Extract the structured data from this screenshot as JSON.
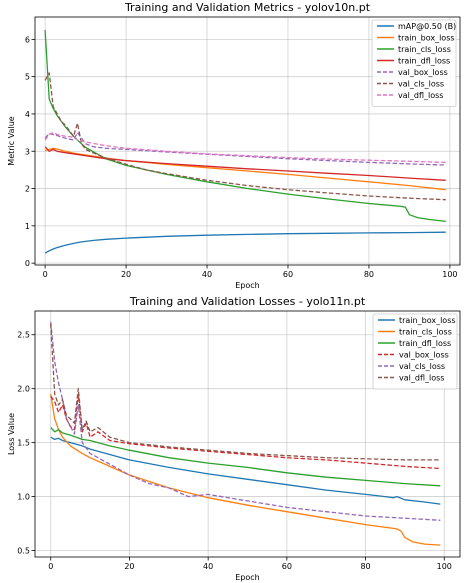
{
  "chart_data": [
    {
      "type": "line",
      "title": "Training and Validation Metrics - yolov10n.pt",
      "xlabel": "Epoch",
      "ylabel": "Metric Value",
      "xlim": [
        -2.5,
        102.5
      ],
      "ylim": [
        -0.05,
        6.6
      ],
      "xticks": [
        0,
        20,
        40,
        60,
        80,
        100
      ],
      "yticks": [
        0,
        1,
        2,
        3,
        4,
        5,
        6
      ],
      "grid": true,
      "legend_position": "top-right",
      "series": [
        {
          "name": "mAP@0.50 (B)",
          "color": "#1f77b4",
          "dashed": false,
          "x": [
            0,
            1,
            2,
            3,
            5,
            7,
            9,
            12,
            15,
            20,
            30,
            40,
            50,
            60,
            70,
            80,
            90,
            99
          ],
          "y": [
            0.27,
            0.33,
            0.38,
            0.42,
            0.48,
            0.53,
            0.57,
            0.61,
            0.64,
            0.67,
            0.72,
            0.75,
            0.77,
            0.79,
            0.8,
            0.81,
            0.82,
            0.83
          ]
        },
        {
          "name": "train_box_loss",
          "color": "#ff7f0e",
          "dashed": false,
          "x": [
            0,
            1,
            2,
            3,
            5,
            7,
            10,
            15,
            20,
            30,
            40,
            50,
            60,
            70,
            80,
            90,
            99
          ],
          "y": [
            3.02,
            3.05,
            3.08,
            3.06,
            3.0,
            2.95,
            2.9,
            2.82,
            2.75,
            2.65,
            2.56,
            2.47,
            2.38,
            2.28,
            2.18,
            2.08,
            1.97
          ]
        },
        {
          "name": "train_cls_loss",
          "color": "#2ca02c",
          "dashed": false,
          "x": [
            0,
            1,
            2,
            3,
            4,
            5,
            7,
            10,
            15,
            20,
            30,
            40,
            50,
            60,
            70,
            80,
            88,
            89,
            90,
            92,
            95,
            99
          ],
          "y": [
            6.25,
            4.4,
            4.15,
            3.95,
            3.8,
            3.65,
            3.4,
            3.1,
            2.8,
            2.62,
            2.38,
            2.18,
            2.0,
            1.85,
            1.72,
            1.6,
            1.52,
            1.5,
            1.3,
            1.22,
            1.17,
            1.12
          ]
        },
        {
          "name": "train_dfl_loss",
          "color": "#d62728",
          "dashed": false,
          "x": [
            0,
            1,
            2,
            3,
            5,
            10,
            15,
            20,
            30,
            40,
            50,
            60,
            70,
            80,
            90,
            99
          ],
          "y": [
            3.12,
            3.0,
            3.05,
            3.0,
            2.96,
            2.88,
            2.8,
            2.75,
            2.67,
            2.6,
            2.53,
            2.47,
            2.41,
            2.35,
            2.28,
            2.22
          ]
        },
        {
          "name": "val_box_loss",
          "color": "#9467bd",
          "dashed": true,
          "x": [
            0,
            1,
            2,
            3,
            5,
            7,
            8,
            10,
            12,
            15,
            20,
            30,
            40,
            50,
            60,
            70,
            80,
            90,
            99
          ],
          "y": [
            3.35,
            3.48,
            3.45,
            3.42,
            3.35,
            3.3,
            3.5,
            3.2,
            3.12,
            3.08,
            3.05,
            2.98,
            2.92,
            2.86,
            2.8,
            2.75,
            2.7,
            2.66,
            2.63
          ]
        },
        {
          "name": "val_cls_loss",
          "color": "#8c564b",
          "dashed": true,
          "x": [
            0,
            1,
            2,
            3,
            4,
            5,
            6,
            7,
            8,
            9,
            10,
            12,
            15,
            20,
            25,
            30,
            40,
            50,
            60,
            70,
            80,
            90,
            99
          ],
          "y": [
            4.9,
            5.1,
            4.2,
            4.0,
            3.8,
            3.7,
            3.55,
            3.4,
            3.75,
            3.2,
            3.05,
            2.95,
            2.82,
            2.65,
            2.5,
            2.4,
            2.22,
            2.08,
            1.97,
            1.88,
            1.8,
            1.74,
            1.7
          ]
        },
        {
          "name": "val_dfl_loss",
          "color": "#e377c2",
          "dashed": true,
          "x": [
            0,
            1,
            2,
            3,
            5,
            7,
            8,
            10,
            15,
            20,
            30,
            40,
            50,
            60,
            70,
            80,
            90,
            99
          ],
          "y": [
            3.3,
            3.45,
            3.5,
            3.45,
            3.4,
            3.38,
            3.3,
            3.25,
            3.15,
            3.08,
            3.0,
            2.93,
            2.88,
            2.83,
            2.79,
            2.76,
            2.73,
            2.7
          ]
        }
      ]
    },
    {
      "type": "line",
      "title": "Training and Validation Losses - yolo11n.pt",
      "xlabel": "Epoch",
      "ylabel": "Loss Value",
      "xlim": [
        -4,
        104
      ],
      "ylim": [
        0.44,
        2.72
      ],
      "xticks": [
        0,
        20,
        40,
        60,
        80,
        100
      ],
      "yticks": [
        0.5,
        1.0,
        1.5,
        2.0,
        2.5
      ],
      "ytick_labels": [
        "0.5",
        "1.0",
        "1.5",
        "2.0",
        "2.5"
      ],
      "grid": true,
      "legend_position": "top-right",
      "series": [
        {
          "name": "train_box_loss",
          "color": "#1f77b4",
          "dashed": false,
          "x": [
            0,
            1,
            2,
            3,
            5,
            8,
            10,
            15,
            20,
            30,
            40,
            50,
            60,
            70,
            80,
            85,
            87,
            88,
            90,
            95,
            99
          ],
          "y": [
            1.55,
            1.53,
            1.54,
            1.52,
            1.5,
            1.47,
            1.44,
            1.39,
            1.34,
            1.27,
            1.21,
            1.16,
            1.11,
            1.06,
            1.02,
            1.0,
            0.99,
            1.0,
            0.97,
            0.95,
            0.93
          ]
        },
        {
          "name": "train_cls_loss",
          "color": "#ff7f0e",
          "dashed": false,
          "x": [
            0,
            1,
            2,
            3,
            5,
            8,
            10,
            15,
            20,
            30,
            40,
            50,
            60,
            70,
            80,
            88,
            89,
            90,
            92,
            95,
            99
          ],
          "y": [
            1.95,
            1.72,
            1.62,
            1.55,
            1.47,
            1.4,
            1.36,
            1.28,
            1.2,
            1.08,
            0.99,
            0.92,
            0.86,
            0.8,
            0.74,
            0.7,
            0.68,
            0.62,
            0.58,
            0.56,
            0.55
          ]
        },
        {
          "name": "train_dfl_loss",
          "color": "#2ca02c",
          "dashed": false,
          "x": [
            0,
            1,
            2,
            3,
            5,
            8,
            10,
            15,
            20,
            30,
            40,
            50,
            60,
            70,
            80,
            90,
            99
          ],
          "y": [
            1.64,
            1.6,
            1.62,
            1.59,
            1.57,
            1.53,
            1.52,
            1.47,
            1.43,
            1.36,
            1.31,
            1.27,
            1.22,
            1.18,
            1.15,
            1.12,
            1.1
          ]
        },
        {
          "name": "val_box_loss",
          "color": "#d62728",
          "dashed": true,
          "x": [
            0,
            1,
            2,
            3,
            4,
            5,
            6,
            7,
            8,
            9,
            10,
            12,
            15,
            20,
            30,
            40,
            50,
            60,
            70,
            80,
            90,
            99
          ],
          "y": [
            1.93,
            1.88,
            1.78,
            1.85,
            1.72,
            1.65,
            1.62,
            1.95,
            1.6,
            1.68,
            1.55,
            1.6,
            1.52,
            1.49,
            1.45,
            1.42,
            1.39,
            1.36,
            1.34,
            1.31,
            1.28,
            1.26
          ]
        },
        {
          "name": "val_cls_loss",
          "color": "#9467bd",
          "dashed": true,
          "x": [
            0,
            1,
            2,
            3,
            4,
            5,
            6,
            7,
            8,
            9,
            10,
            12,
            15,
            20,
            25,
            30,
            35,
            40,
            50,
            60,
            70,
            80,
            90,
            99
          ],
          "y": [
            2.62,
            2.25,
            2.05,
            1.9,
            1.72,
            1.65,
            1.58,
            1.85,
            1.5,
            1.45,
            1.4,
            1.36,
            1.3,
            1.2,
            1.12,
            1.08,
            1.0,
            1.02,
            0.96,
            0.9,
            0.86,
            0.82,
            0.8,
            0.78
          ]
        },
        {
          "name": "val_dfl_loss",
          "color": "#8c564b",
          "dashed": true,
          "x": [
            0,
            1,
            2,
            3,
            4,
            5,
            6,
            7,
            8,
            9,
            10,
            12,
            15,
            20,
            30,
            40,
            50,
            60,
            70,
            80,
            90,
            99
          ],
          "y": [
            2.6,
            1.95,
            1.85,
            1.9,
            1.75,
            1.72,
            1.68,
            2.0,
            1.62,
            1.7,
            1.6,
            1.64,
            1.55,
            1.5,
            1.46,
            1.43,
            1.4,
            1.38,
            1.36,
            1.35,
            1.34,
            1.34
          ]
        }
      ]
    }
  ]
}
